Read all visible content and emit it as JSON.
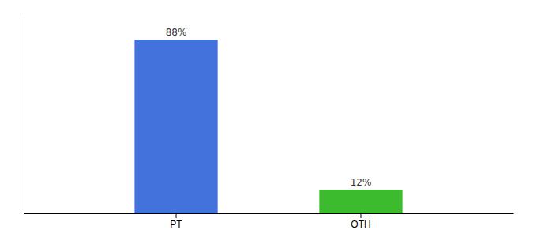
{
  "chart_data": {
    "type": "bar",
    "categories": [
      "PT",
      "OTH"
    ],
    "values": [
      88,
      12
    ],
    "value_labels": [
      "88%",
      "12%"
    ],
    "colors": [
      "#4472DD",
      "#3CBB2E"
    ],
    "ylim": [
      0,
      100
    ],
    "data_labels": true,
    "tick_labels": "x"
  }
}
